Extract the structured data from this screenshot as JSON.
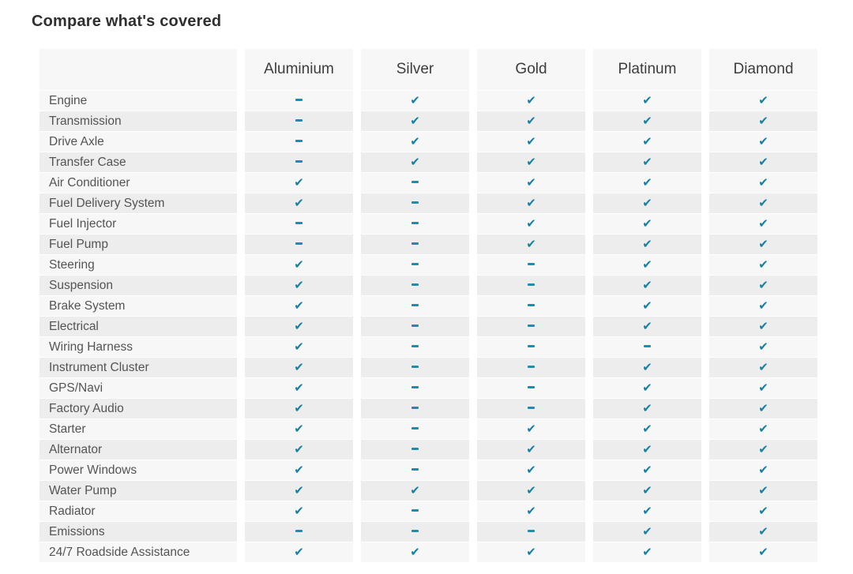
{
  "title": "Compare what's covered",
  "table": {
    "corner_label": "",
    "plans": [
      "Aluminium",
      "Silver",
      "Gold",
      "Platinum",
      "Diamond"
    ],
    "rows": [
      {
        "label": "Engine",
        "covered": [
          false,
          true,
          true,
          true,
          true
        ]
      },
      {
        "label": "Transmission",
        "covered": [
          false,
          true,
          true,
          true,
          true
        ]
      },
      {
        "label": "Drive Axle",
        "covered": [
          false,
          true,
          true,
          true,
          true
        ]
      },
      {
        "label": "Transfer Case",
        "covered": [
          false,
          true,
          true,
          true,
          true
        ]
      },
      {
        "label": "Air Conditioner",
        "covered": [
          true,
          false,
          true,
          true,
          true
        ]
      },
      {
        "label": "Fuel Delivery System",
        "covered": [
          true,
          false,
          true,
          true,
          true
        ]
      },
      {
        "label": "Fuel Injector",
        "covered": [
          false,
          false,
          true,
          true,
          true
        ]
      },
      {
        "label": "Fuel Pump",
        "covered": [
          false,
          false,
          true,
          true,
          true
        ]
      },
      {
        "label": "Steering",
        "covered": [
          true,
          false,
          false,
          true,
          true
        ]
      },
      {
        "label": "Suspension",
        "covered": [
          true,
          false,
          false,
          true,
          true
        ]
      },
      {
        "label": "Brake System",
        "covered": [
          true,
          false,
          false,
          true,
          true
        ]
      },
      {
        "label": "Electrical",
        "covered": [
          true,
          false,
          false,
          true,
          true
        ]
      },
      {
        "label": "Wiring Harness",
        "covered": [
          true,
          false,
          false,
          false,
          true
        ]
      },
      {
        "label": "Instrument Cluster",
        "covered": [
          true,
          false,
          false,
          true,
          true
        ]
      },
      {
        "label": "GPS/Navi",
        "covered": [
          true,
          false,
          false,
          true,
          true
        ]
      },
      {
        "label": "Factory Audio",
        "covered": [
          true,
          false,
          false,
          true,
          true
        ]
      },
      {
        "label": "Starter",
        "covered": [
          true,
          false,
          true,
          true,
          true
        ]
      },
      {
        "label": "Alternator",
        "covered": [
          true,
          false,
          true,
          true,
          true
        ]
      },
      {
        "label": "Power Windows",
        "covered": [
          true,
          false,
          true,
          true,
          true
        ]
      },
      {
        "label": "Water Pump",
        "covered": [
          true,
          true,
          true,
          true,
          true
        ]
      },
      {
        "label": "Radiator",
        "covered": [
          true,
          false,
          true,
          true,
          true
        ]
      },
      {
        "label": "Emissions",
        "covered": [
          false,
          false,
          false,
          true,
          true
        ]
      },
      {
        "label": "24/7 Roadside Assistance",
        "covered": [
          true,
          true,
          true,
          true,
          true
        ]
      }
    ]
  },
  "icons": {
    "covered_glyph": "✔",
    "covered_name": "check-icon",
    "not_covered_name": "dash-icon"
  },
  "colors": {
    "check": "#1480a6",
    "dash": "#1e8cb0",
    "header_bg": "#f7f7f7",
    "row_light": "#f7f7f7",
    "row_dark": "#ededed"
  }
}
